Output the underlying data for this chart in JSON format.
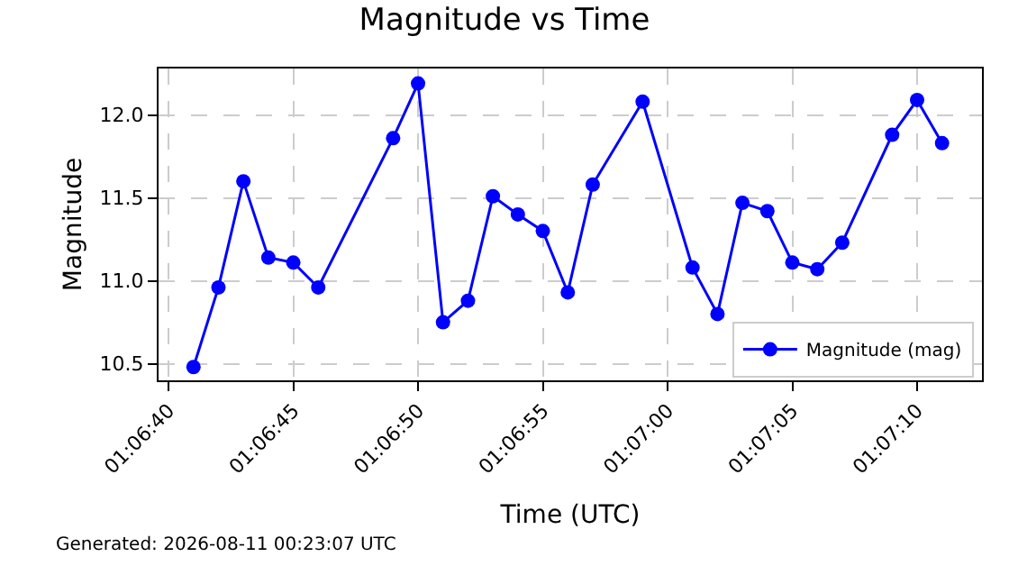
{
  "chart_data": {
    "type": "line",
    "title": "Magnitude vs Time",
    "xlabel": "Time (UTC)",
    "ylabel": "Magnitude",
    "x": [
      "2026-08-11T01:06:41",
      "2026-08-11T01:06:42",
      "2026-08-11T01:06:43",
      "2026-08-11T01:06:44",
      "2026-08-11T01:06:45",
      "2026-08-11T01:06:46",
      "2026-08-11T01:06:49",
      "2026-08-11T01:06:50",
      "2026-08-11T01:06:51",
      "2026-08-11T01:06:52",
      "2026-08-11T01:06:53",
      "2026-08-11T01:06:54",
      "2026-08-11T01:06:55",
      "2026-08-11T01:06:56",
      "2026-08-11T01:06:57",
      "2026-08-11T01:06:59",
      "2026-08-11T01:07:01",
      "2026-08-11T01:07:02",
      "2026-08-11T01:07:03",
      "2026-08-11T01:07:04",
      "2026-08-11T01:07:05",
      "2026-08-11T01:07:06",
      "2026-08-11T01:07:07",
      "2026-08-11T01:07:09",
      "2026-08-11T01:07:10",
      "2026-08-11T01:07:11"
    ],
    "series": [
      {
        "name": "Magnitude (mag)",
        "color": "#0000ff",
        "values": [
          10.48,
          10.96,
          11.6,
          11.14,
          11.11,
          10.96,
          11.86,
          12.19,
          10.75,
          10.88,
          11.51,
          11.4,
          11.3,
          10.93,
          11.58,
          12.08,
          11.08,
          10.8,
          11.47,
          11.42,
          11.11,
          11.07,
          11.23,
          11.88,
          12.09,
          11.83
        ]
      }
    ],
    "xlim": [
      "2026-08-11T01:06:39.6",
      "2026-08-11T01:07:12.6"
    ],
    "xticks": [
      {
        "value": "2026-08-11T01:06:40",
        "label": "01:06:40"
      },
      {
        "value": "2026-08-11T01:06:45",
        "label": "01:06:45"
      },
      {
        "value": "2026-08-11T01:06:50",
        "label": "01:06:50"
      },
      {
        "value": "2026-08-11T01:06:55",
        "label": "01:06:55"
      },
      {
        "value": "2026-08-11T01:07:00",
        "label": "01:07:00"
      },
      {
        "value": "2026-08-11T01:07:05",
        "label": "01:07:05"
      },
      {
        "value": "2026-08-11T01:07:10",
        "label": "01:07:10"
      }
    ],
    "ylim": [
      10.4,
      12.28
    ],
    "yticks": [
      10.5,
      {
        "value": 11,
        "label": "11.0"
      },
      11.5,
      {
        "value": 12,
        "label": "12.0"
      }
    ],
    "grid": true,
    "legend": "bottom right",
    "marker": "circle",
    "line_style": "solid",
    "annotations": [
      "Generated: 2026-08-11 00:23:07 UTC"
    ]
  }
}
